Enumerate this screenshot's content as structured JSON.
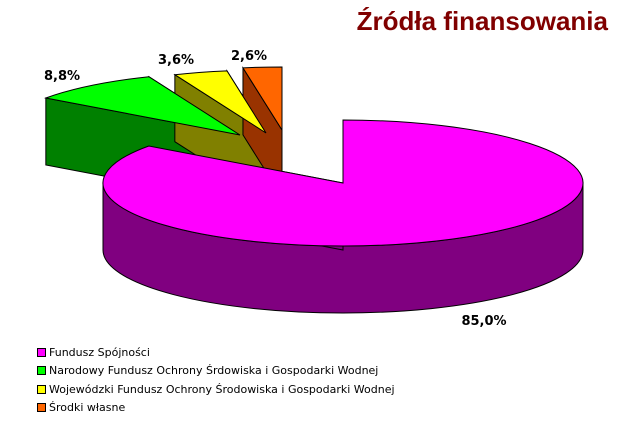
{
  "chart_data": {
    "type": "pie",
    "title": "Źródła finansowania",
    "three_d": true,
    "legend_position": "bottom-left",
    "series": [
      {
        "values": [
          85.0,
          8.8,
          3.6,
          2.6
        ]
      }
    ],
    "categories": [
      "Fundusz Spójności",
      "Narodowy Fundusz Ochrony Śrdowiska i Gospodarki Wodnej",
      "Wojewódzki Fundusz Ochrony Środowiska i Gospodarki Wodnej",
      "Środki własne"
    ],
    "data_labels": [
      "85,0%",
      "8,8%",
      "3,6%",
      "2,6%"
    ],
    "colors": [
      "#ff00ff",
      "#00ff00",
      "#ffff00",
      "#ff6600"
    ],
    "side_colors": [
      "#800080",
      "#008000",
      "#808000",
      "#993300"
    ]
  }
}
